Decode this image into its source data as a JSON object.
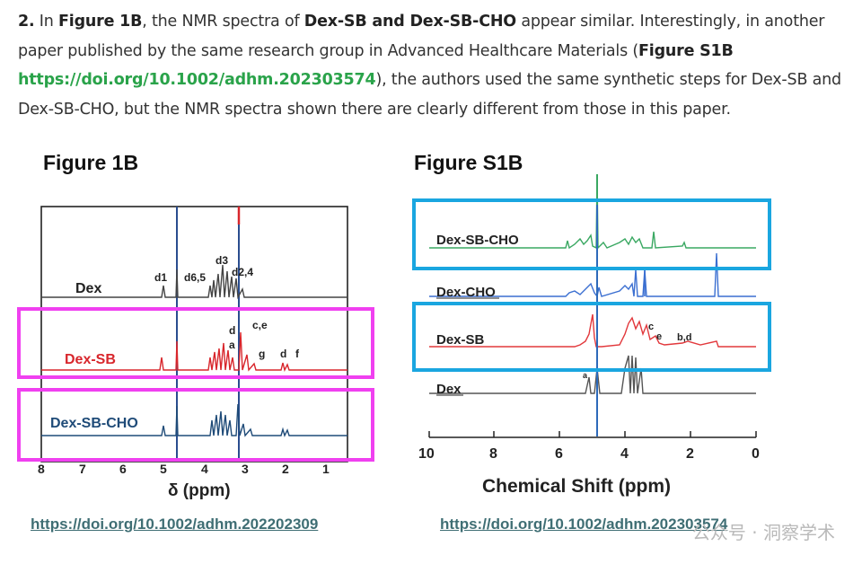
{
  "paragraph": {
    "num": "2.",
    "t1": " In ",
    "fig1b": "Figure 1B",
    "t2": ", the NMR spectra of ",
    "compounds": "Dex-SB and Dex-SB-CHO",
    "t3": " appear similar. Interestingly, in another paper published by the same research group in Advanced Healthcare Materials (",
    "figs1b": "Figure S1B",
    "link": "https://doi.org/10.1002/adhm.202303574",
    "t4": "), the authors used the same synthetic steps for Dex-SB and Dex-SB-CHO, but the NMR spectra shown there are clearly different from those in this paper."
  },
  "figure_left": {
    "title": "Figure 1B",
    "xlabel": "δ (ppm)",
    "ticks": [
      "8",
      "7",
      "6",
      "5",
      "4",
      "3",
      "2",
      "1"
    ],
    "traces": [
      "Dex",
      "Dex-SB",
      "Dex-SB-CHO"
    ],
    "peak_labels": [
      "d1",
      "d6,5",
      "d3",
      "d2,4",
      "d",
      "a",
      "c,e",
      "g",
      "d",
      "f"
    ],
    "doi": "https://doi.org/10.1002/adhm.202202309"
  },
  "figure_right": {
    "title": "Figure S1B",
    "xlabel": "Chemical Shift (ppm)",
    "ticks": [
      "10",
      "8",
      "6",
      "4",
      "2",
      "0"
    ],
    "traces": [
      "Dex-SB-CHO",
      "Dex-CHO",
      "Dex-SB",
      "Dex"
    ],
    "peak_labels": [
      "c",
      "e",
      "b,d",
      "a"
    ],
    "doi": "https://doi.org/10.1002/adhm.202303574"
  },
  "watermark": "公众号 · 洞察学术",
  "colors": {
    "link_green": "#2aa34a",
    "magenta_box": "#f040f0",
    "cyan_box": "#1aa6e0",
    "red_trace": "#d8262c",
    "navy_trace": "#1f4b78",
    "green_trace": "#3aa862",
    "blue_trace": "#3b6fd1"
  }
}
